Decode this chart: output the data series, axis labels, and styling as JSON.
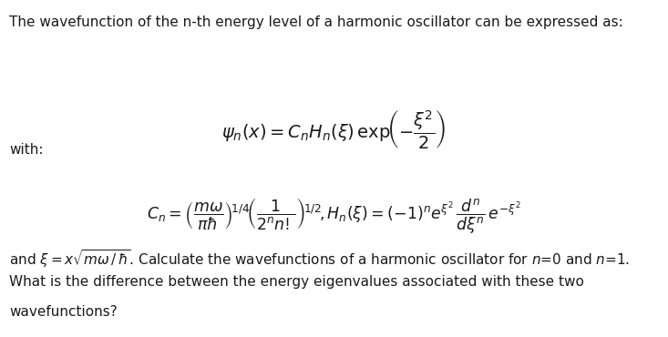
{
  "figsize": [
    7.33,
    3.7
  ],
  "dpi": 100,
  "bg_color": "#ffffff",
  "font_color": "#1a1a1a",
  "line1": "The wavefunction of the n-th energy level of a harmonic oscillator can be expressed as:",
  "eq_main": "$\\psi_n(x) = C_nH_n(\\xi)\\,\\mathrm{exp}\\!\\left(-\\dfrac{\\xi^2}{2}\\right)$",
  "label_with": "with:",
  "eq_cn": "$C_n = \\left(\\dfrac{m\\omega}{\\pi\\hbar}\\right)^{\\!1/4}\\!\\left(\\dfrac{1}{2^n n!}\\right)^{\\!1/2}\\!,H_n(\\xi) = (-1)^n e^{\\xi^2}\\,\\dfrac{d^n}{d\\xi^n}\\,e^{-\\xi^2}$",
  "line_and": "and $\\xi = x\\sqrt{m\\omega\\,/\\,\\hbar}$. Calculate the wavefunctions of a harmonic oscillator for $n$=0 and $n$=1.",
  "line_q1": "What is the difference between the energy eigenvalues associated with these two",
  "line_q2": "wavefunctions?",
  "font_size_text": 11.0,
  "font_size_eq": 12.5,
  "font_size_and": 11.0
}
